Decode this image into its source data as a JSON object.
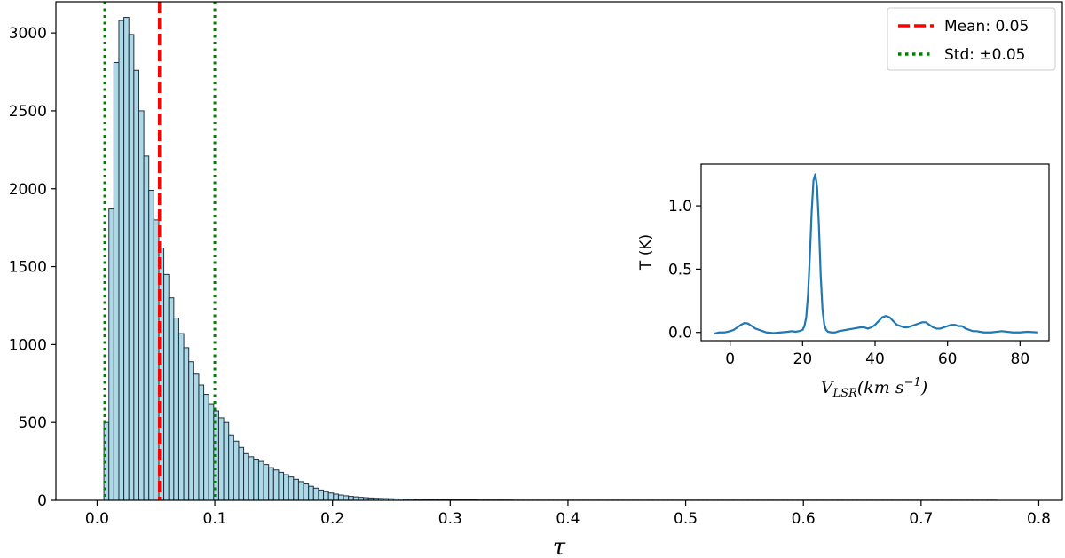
{
  "chart_data": [
    {
      "type": "bar",
      "chart_role": "main-histogram",
      "xlabel": "τ",
      "ylabel": "",
      "xlim": [
        -0.035,
        0.82
      ],
      "ylim": [
        0,
        3200
      ],
      "xticks": [
        0.0,
        0.1,
        0.2,
        0.3,
        0.4,
        0.5,
        0.6,
        0.7,
        0.8
      ],
      "xtick_labels": [
        "0.0",
        "0.1",
        "0.2",
        "0.3",
        "0.4",
        "0.5",
        "0.6",
        "0.7",
        "0.8"
      ],
      "yticks": [
        0,
        500,
        1000,
        1500,
        2000,
        2500,
        3000
      ],
      "ytick_labels": [
        "0",
        "500",
        "1000",
        "1500",
        "2000",
        "2500",
        "3000"
      ],
      "bar_color": "#add8e6",
      "edge_color": "#1e3040",
      "bin_start": 0.0058,
      "bin_width": 0.00424,
      "values": [
        500,
        1870,
        2810,
        3080,
        3100,
        2990,
        2760,
        2500,
        2210,
        1990,
        1800,
        1620,
        1450,
        1300,
        1170,
        1070,
        980,
        890,
        810,
        740,
        680,
        620,
        575,
        530,
        500,
        420,
        380,
        340,
        300,
        280,
        265,
        250,
        230,
        210,
        195,
        180,
        165,
        150,
        135,
        120,
        105,
        90,
        78,
        66,
        56,
        47,
        40,
        34,
        29,
        25,
        22,
        19,
        17,
        15,
        13,
        12,
        11,
        10,
        9,
        8,
        7,
        7,
        6,
        6,
        5,
        5,
        5,
        4,
        4,
        4,
        3,
        3,
        3,
        3,
        3,
        2,
        2,
        2,
        2,
        2,
        2,
        2,
        1,
        1,
        1,
        1,
        1,
        1,
        1,
        1,
        1,
        1,
        1,
        1,
        1,
        1,
        1,
        1,
        1,
        1,
        1,
        1,
        1,
        1,
        1,
        1,
        1,
        1,
        1,
        1,
        1,
        1,
        1,
        1,
        1,
        1,
        1,
        1,
        1,
        1,
        1,
        1,
        1,
        1,
        1,
        1,
        1,
        1,
        1,
        1,
        1,
        1,
        1,
        1,
        1,
        1,
        1,
        1,
        1,
        1,
        1,
        1,
        1,
        1,
        1,
        1,
        1,
        1,
        1,
        1,
        1,
        1,
        1,
        1,
        1,
        1,
        1,
        1,
        1,
        1,
        1,
        1,
        1,
        1,
        1,
        1,
        1,
        1,
        1,
        1,
        1,
        1,
        1,
        1,
        1,
        1,
        1,
        1,
        1
      ],
      "mean_line": {
        "x": 0.053,
        "label": "Mean: 0.05",
        "color": "#ff0000"
      },
      "std_lines": {
        "x": [
          0.0065,
          0.1
        ],
        "label": "Std: ±0.05",
        "color": "#008000"
      },
      "legend": {
        "placement": "top-right",
        "entries": [
          {
            "label": "Mean: 0.05",
            "color": "#ff0000",
            "style": "dashed"
          },
          {
            "label": "Std: ±0.05",
            "color": "#008000",
            "style": "dotted"
          }
        ]
      }
    },
    {
      "type": "line",
      "chart_role": "inset-spectrum",
      "xlabel_main": "V",
      "xlabel_sub": "LSR",
      "xlabel_units": "(km s",
      "xlabel_exp": "−1",
      "xlabel_close": ")",
      "ylabel": "T (K)",
      "xlim": [
        -8,
        88
      ],
      "ylim": [
        -0.065,
        1.33
      ],
      "xticks": [
        0,
        20,
        40,
        60,
        80
      ],
      "xtick_labels": [
        "0",
        "20",
        "40",
        "60",
        "80"
      ],
      "yticks": [
        0.0,
        0.5,
        1.0
      ],
      "ytick_labels": [
        "0.0",
        "0.5",
        "1.0"
      ],
      "line_color": "#1f77b4",
      "x": [
        -4.5,
        -3,
        -1.5,
        0,
        1,
        2,
        3,
        4,
        5,
        6,
        7,
        8,
        9,
        10,
        12,
        14,
        16,
        17,
        18,
        19,
        20,
        20.5,
        21,
        21.5,
        22,
        22.5,
        23,
        23.5,
        24,
        24.5,
        25,
        25.5,
        26,
        26.5,
        27,
        28,
        29,
        30,
        32,
        34,
        36,
        37,
        38,
        39,
        40,
        41,
        42,
        43,
        44,
        45,
        46,
        47,
        48,
        49,
        50,
        51,
        52,
        53,
        54,
        55,
        56,
        57,
        58,
        59,
        60,
        61,
        62,
        63,
        64,
        65,
        66,
        67,
        68,
        70,
        72,
        75,
        78,
        80,
        82,
        85
      ],
      "y": [
        -0.01,
        0.0,
        0.0,
        0.01,
        0.02,
        0.04,
        0.06,
        0.075,
        0.07,
        0.05,
        0.03,
        0.02,
        0.01,
        0.0,
        -0.005,
        0.0,
        0.005,
        0.01,
        0.005,
        0.01,
        0.02,
        0.05,
        0.12,
        0.3,
        0.6,
        0.95,
        1.2,
        1.25,
        1.15,
        0.85,
        0.45,
        0.18,
        0.06,
        0.02,
        0.005,
        0.0,
        0.0,
        0.01,
        0.02,
        0.03,
        0.04,
        0.04,
        0.03,
        0.04,
        0.06,
        0.09,
        0.12,
        0.13,
        0.12,
        0.09,
        0.06,
        0.05,
        0.04,
        0.04,
        0.05,
        0.06,
        0.07,
        0.08,
        0.08,
        0.06,
        0.04,
        0.03,
        0.03,
        0.04,
        0.05,
        0.06,
        0.06,
        0.05,
        0.05,
        0.03,
        0.02,
        0.01,
        0.01,
        0.0,
        0.0,
        0.01,
        0.0,
        0.0,
        0.005,
        0.0
      ]
    }
  ]
}
